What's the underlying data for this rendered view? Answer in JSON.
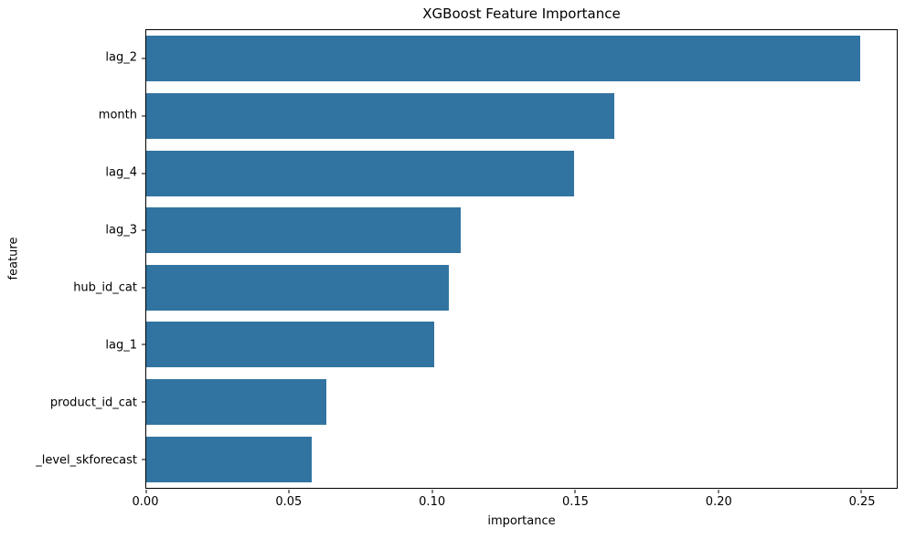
{
  "chart_data": {
    "type": "bar",
    "orientation": "horizontal",
    "title": "XGBoost Feature Importance",
    "xlabel": "importance",
    "ylabel": "feature",
    "categories": [
      "lag_2",
      "month",
      "lag_4",
      "lag_3",
      "hub_id_cat",
      "lag_1",
      "product_id_cat",
      "_level_skforecast"
    ],
    "values": [
      0.2495,
      0.1638,
      0.1497,
      0.1099,
      0.1057,
      0.1006,
      0.0629,
      0.0578
    ],
    "xlim": [
      0,
      0.2624
    ],
    "xticks": [
      0.0,
      0.05,
      0.1,
      0.15,
      0.2,
      0.25
    ],
    "xtick_labels": [
      "0.00",
      "0.05",
      "0.10",
      "0.15",
      "0.20",
      "0.25"
    ],
    "bar_color": "#3274a1",
    "background_color": "#ffffff",
    "text_color": "#000000",
    "grid": false,
    "legend": null,
    "bar_fraction_of_slot": 0.8
  }
}
